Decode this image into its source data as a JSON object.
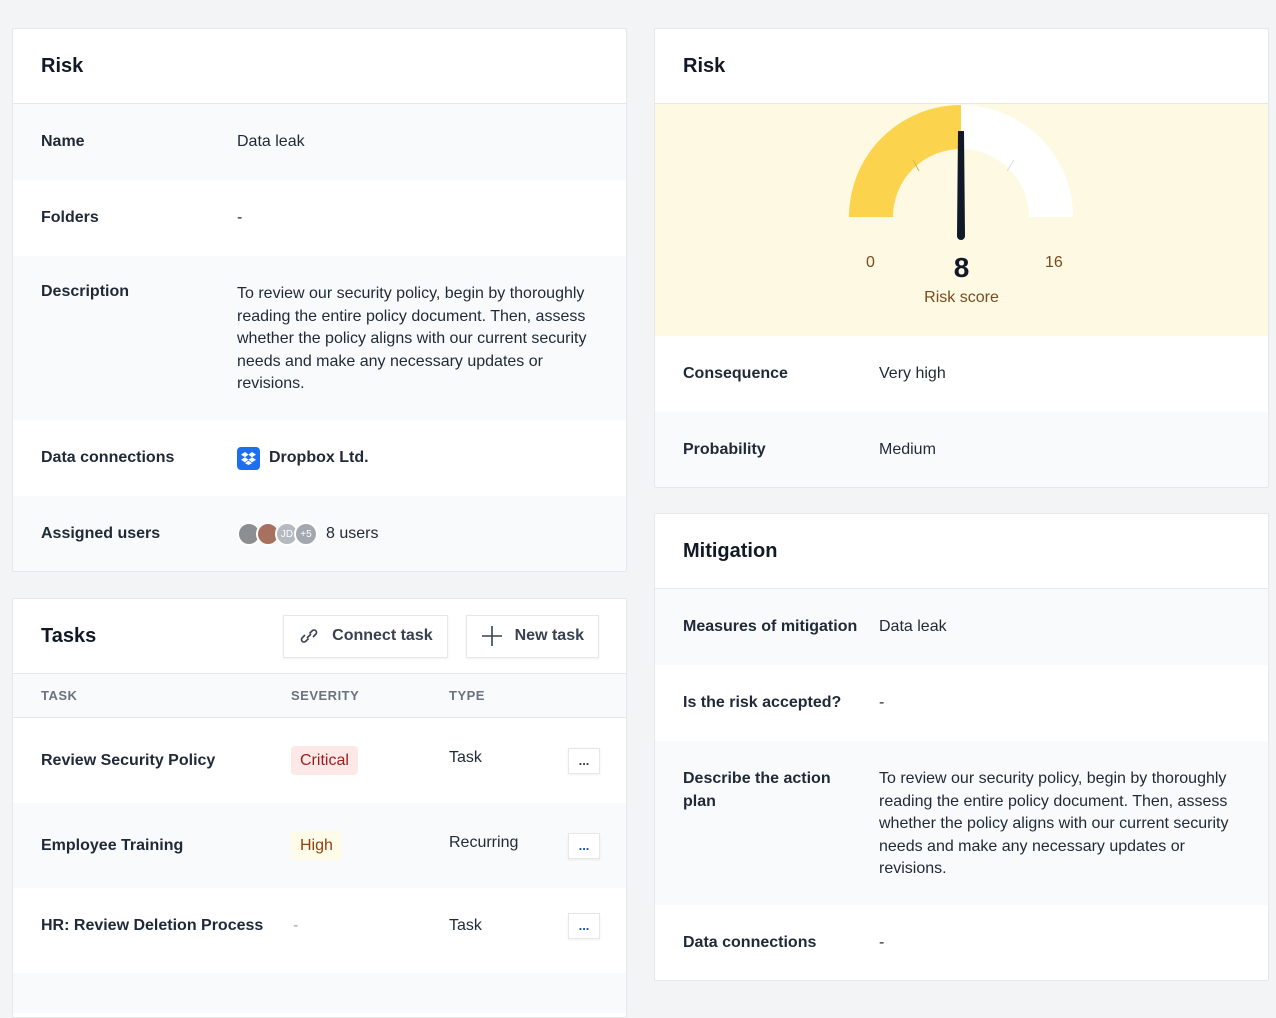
{
  "risk_details": {
    "title": "Risk",
    "rows": [
      {
        "label": "Name",
        "value": "Data leak"
      },
      {
        "label": "Folders",
        "value": "-"
      },
      {
        "label": "Description",
        "value": "To review our security policy, begin by thoroughly reading the entire policy document. Then, assess whether the policy aligns with our current security needs and make any necessary updates or revisions."
      },
      {
        "label": "Data connections",
        "value": "Dropbox Ltd.",
        "icon": "dropbox-icon"
      },
      {
        "label": "Assigned users",
        "value": "8 users",
        "avatars": [
          "JD",
          "+5"
        ]
      }
    ]
  },
  "tasks": {
    "title": "Tasks",
    "connect_label": "Connect task",
    "new_label": "New task",
    "columns": [
      "TASK",
      "SEVERITY",
      "TYPE"
    ],
    "rows": [
      {
        "task": "Review Security Policy",
        "severity": "Critical",
        "type": "Task"
      },
      {
        "task": "Employee Training",
        "severity": "High",
        "type": "Recurring"
      },
      {
        "task": "HR: Review Deletion Process",
        "severity": "-",
        "type": "Task"
      }
    ],
    "more_label": "..."
  },
  "risk_score": {
    "title": "Risk",
    "gauge": {
      "min": "0",
      "max": "16",
      "value": "8",
      "label": "Risk score"
    },
    "rows": [
      {
        "label": "Consequence",
        "value": "Very high"
      },
      {
        "label": "Probability",
        "value": "Medium"
      }
    ]
  },
  "mitigation": {
    "title": "Mitigation",
    "rows": [
      {
        "label": "Measures of mitigation",
        "value": "Data leak"
      },
      {
        "label": "Is the risk accepted?",
        "value": "-"
      },
      {
        "label": "Describe the action plan",
        "value": "To review our security policy, begin by thoroughly reading the entire policy document. Then, assess whether the policy aligns with our current security needs and make any necessary updates or revisions."
      },
      {
        "label": "Data connections",
        "value": "-"
      }
    ]
  },
  "colors": {
    "gauge_fill": "#fcd34d",
    "gauge_bg": "#fef9e3",
    "critical_bg": "#fde8e8",
    "critical_text": "#9b1c1c",
    "high_bg": "#fefbe8",
    "high_text": "#92400e",
    "dropbox": "#1d6ff2"
  }
}
